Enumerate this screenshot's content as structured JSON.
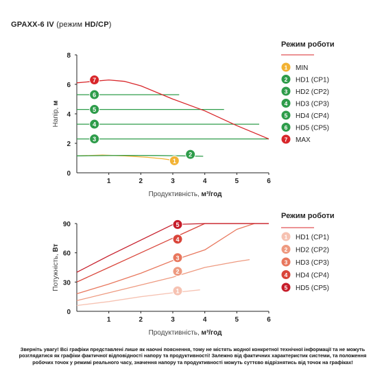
{
  "title": {
    "model_bold": "GPA",
    "model_mid": "XX-6 IV",
    "mode_prefix": "(режим ",
    "mode_bold": "HD/CP",
    "mode_suffix": ")"
  },
  "chart_data": [
    {
      "type": "line",
      "xlabel": "Продуктивність, м³/год",
      "ylabel": "Напір, м",
      "xlim": [
        0,
        6
      ],
      "ylim": [
        0,
        8
      ],
      "xticks": [
        "1",
        "2",
        "3",
        "4",
        "5",
        "6"
      ],
      "yticks": [
        "2",
        "4",
        "6",
        "8"
      ],
      "origin_label": "0",
      "legend_title": "Режим роботи",
      "series": [
        {
          "name": "MIN",
          "marker": "1",
          "color": "#f2b233",
          "x": [
            0,
            0.8,
            1.5,
            2.2,
            2.7,
            3.0,
            3.05
          ],
          "y": [
            1.15,
            1.2,
            1.15,
            1.05,
            0.95,
            0.85,
            0.82
          ],
          "marker_at": [
            3.05,
            0.82
          ]
        },
        {
          "name": "HD1 (CP1)",
          "marker": "2",
          "color": "#2e9c4a",
          "x": [
            0,
            1.5,
            2.5,
            3.3,
            3.95
          ],
          "y": [
            1.15,
            1.18,
            1.17,
            1.15,
            1.12
          ],
          "marker_at": [
            3.55,
            1.25
          ]
        },
        {
          "name": "HD2 (CP2)",
          "marker": "3",
          "color": "#2e9c4a",
          "x": [
            0,
            6
          ],
          "y": [
            2.3,
            2.3
          ],
          "marker_at": [
            0.55,
            2.3
          ]
        },
        {
          "name": "HD3 (CP3)",
          "marker": "4",
          "color": "#2e9c4a",
          "x": [
            0,
            5.7
          ],
          "y": [
            3.3,
            3.3
          ],
          "marker_at": [
            0.55,
            3.3
          ]
        },
        {
          "name": "HD4 (CP4)",
          "marker": "5",
          "color": "#2e9c4a",
          "x": [
            0,
            4.6
          ],
          "y": [
            4.3,
            4.3
          ],
          "marker_at": [
            0.55,
            4.3
          ]
        },
        {
          "name": "HD5 (CP5)",
          "marker": "6",
          "color": "#2e9c4a",
          "x": [
            0,
            3.2
          ],
          "y": [
            5.3,
            5.3
          ],
          "marker_at": [
            0.55,
            5.3
          ]
        },
        {
          "name": "MAX",
          "marker": "7",
          "color": "#d8262a",
          "x": [
            0,
            0.5,
            1.0,
            1.5,
            2.0,
            3.0,
            4.0,
            5.0,
            6.0
          ],
          "y": [
            6.1,
            6.2,
            6.3,
            6.2,
            5.9,
            5.0,
            4.2,
            3.2,
            2.3
          ],
          "marker_at": [
            0.55,
            6.3
          ]
        }
      ]
    },
    {
      "type": "line",
      "xlabel": "Продуктивність, м³/год",
      "ylabel": "Потужність, Вт",
      "xlim": [
        0,
        6
      ],
      "ylim": [
        0,
        90
      ],
      "xticks": [
        "1",
        "2",
        "3",
        "4",
        "5",
        "6"
      ],
      "yticks": [
        "30",
        "60",
        "90"
      ],
      "origin_label": "0",
      "legend_title": "Режим роботи",
      "series": [
        {
          "name": "HD1 (CP1)",
          "marker": "1",
          "color": "#f6c2b2",
          "x": [
            0,
            1,
            2,
            3,
            3.85
          ],
          "y": [
            6,
            10,
            15,
            19,
            22
          ],
          "marker_at": [
            3.15,
            21
          ]
        },
        {
          "name": "HD2 (CP2)",
          "marker": "2",
          "color": "#ee9a80",
          "x": [
            0,
            1,
            2,
            3,
            4,
            5,
            5.4
          ],
          "y": [
            11,
            19,
            27,
            35,
            45,
            51,
            53
          ],
          "marker_at": [
            3.15,
            41
          ]
        },
        {
          "name": "HD3 (CP3)",
          "marker": "3",
          "color": "#e8775d",
          "x": [
            0,
            1,
            2,
            3,
            4,
            5,
            5.55
          ],
          "y": [
            18,
            28,
            39,
            52,
            63,
            84,
            90
          ],
          "marker_at": [
            3.15,
            55
          ]
        },
        {
          "name": "HD4 (CP4)",
          "marker": "4",
          "color": "#d9453a",
          "x": [
            0,
            1,
            2,
            3,
            4,
            5,
            6
          ],
          "y": [
            30,
            45,
            60,
            75,
            90,
            90,
            90
          ],
          "marker_at": [
            3.15,
            74
          ]
        },
        {
          "name": "HD5 (CP5)",
          "marker": "5",
          "color": "#c61d2a",
          "x": [
            0,
            1,
            2,
            3,
            4,
            5,
            6
          ],
          "y": [
            40,
            57,
            73,
            89,
            90,
            90,
            90
          ],
          "marker_at": [
            3.15,
            89
          ]
        }
      ]
    }
  ],
  "notice": "Зверніть увагу! Всі графіки представлені лише як наочні пояснення, тому не містять жодної конкретної технічної інформації та не можуть розглядатися як графіки фактичної відповідності напору та продуктивності! Залежно від фактичних характеристик системи, та положення робочих точок у режимі реального часу, значення напору та продуктивності можуть суттєво відрізнятись від точок на графіках!"
}
